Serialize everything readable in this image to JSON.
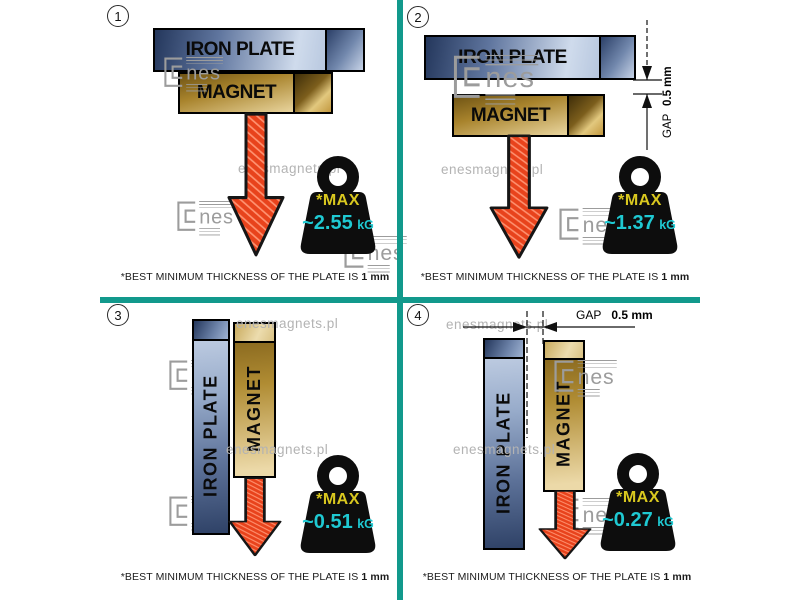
{
  "watermarks": {
    "site_text": "enesmagnets.pl",
    "logo_text": "nes"
  },
  "colors": {
    "accent_teal": "#12998c",
    "arrow_red": "#e8431c",
    "arrow_hatch_light": "#ff9473",
    "weight_yellow": "#d9c81f",
    "weight_cyan": "#1fc9d2"
  },
  "panels": [
    {
      "number": "1",
      "plate_label": "IRON PLATE",
      "magnet_label": "MAGNET",
      "max_label": "*MAX",
      "weight_value": "~2.55",
      "weight_unit": "kG",
      "caption_normal": "*BEST MINIMUM THICKNESS OF THE PLATE IS ",
      "caption_bold": "1 mm"
    },
    {
      "number": "2",
      "plate_label": "IRON PLATE",
      "magnet_label": "MAGNET",
      "max_label": "*MAX",
      "weight_value": "~1.37",
      "weight_unit": "kG",
      "gap_label": "GAP",
      "gap_value": "0.5 mm",
      "caption_normal": "*BEST MINIMUM THICKNESS OF THE PLATE IS ",
      "caption_bold": "1 mm"
    },
    {
      "number": "3",
      "plate_label": "IRON PLATE",
      "magnet_label": "MAGNET",
      "max_label": "*MAX",
      "weight_value": "~0.51",
      "weight_unit": "kG",
      "caption_normal": "*BEST MINIMUM THICKNESS OF THE PLATE IS ",
      "caption_bold": "1 mm"
    },
    {
      "number": "4",
      "plate_label": "IRON PLATE",
      "magnet_label": "MAGNET",
      "max_label": "*MAX",
      "weight_value": "~0.27",
      "weight_unit": "kG",
      "gap_label": "GAP",
      "gap_value": "0.5 mm",
      "caption_normal": "*BEST MINIMUM THICKNESS OF THE PLATE IS ",
      "caption_bold": "1 mm"
    }
  ]
}
